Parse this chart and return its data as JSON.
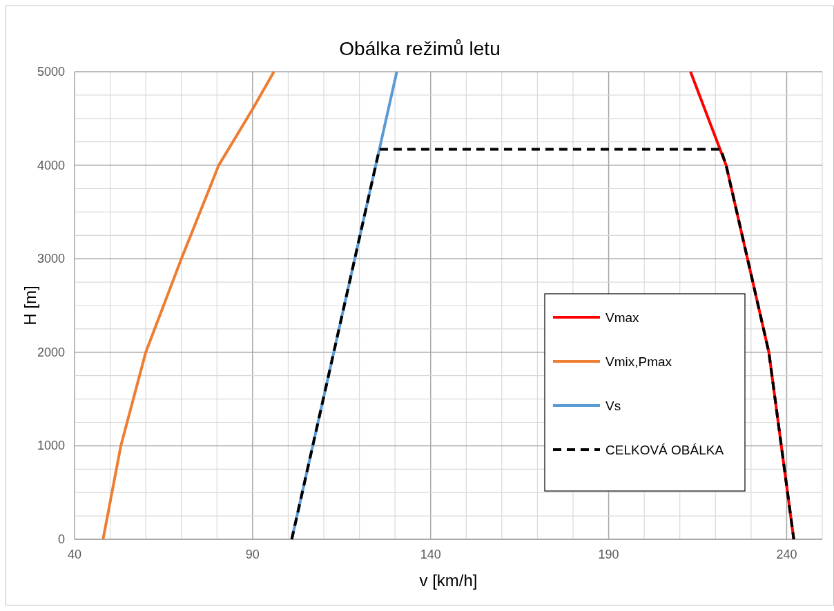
{
  "chart_data": {
    "type": "line",
    "title": "Obálka režimů letu",
    "xlabel": "v [km/h]",
    "ylabel": "H [m]",
    "xlim": [
      40,
      250
    ],
    "ylim": [
      0,
      5000
    ],
    "xticks": [
      40,
      {
        "value": 50,
        "label": null
      },
      {
        "value": 60,
        "label": null
      },
      {
        "value": 70,
        "label": null
      },
      {
        "value": 80,
        "label": null
      },
      90,
      {
        "value": 100,
        "label": null
      },
      {
        "value": 110,
        "label": null
      },
      {
        "value": 120,
        "label": null
      },
      {
        "value": 130,
        "label": null
      },
      140,
      {
        "value": 150,
        "label": null
      },
      {
        "value": 160,
        "label": null
      },
      {
        "value": 170,
        "label": null
      },
      {
        "value": 180,
        "label": null
      },
      190,
      {
        "value": 200,
        "label": null
      },
      {
        "value": 210,
        "label": null
      },
      {
        "value": 220,
        "label": null
      },
      {
        "value": 230,
        "label": null
      },
      240,
      {
        "value": 250,
        "label": null
      }
    ],
    "yticks": [
      0,
      {
        "value": 250,
        "label": null
      },
      {
        "value": 500,
        "label": null
      },
      {
        "value": 750,
        "label": null
      },
      1000,
      {
        "value": 1250,
        "label": null
      },
      {
        "value": 1500,
        "label": null
      },
      {
        "value": 1750,
        "label": null
      },
      2000,
      {
        "value": 2250,
        "label": null
      },
      {
        "value": 2500,
        "label": null
      },
      {
        "value": 2750,
        "label": null
      },
      3000,
      {
        "value": 3250,
        "label": null
      },
      {
        "value": 3500,
        "label": null
      },
      {
        "value": 3750,
        "label": null
      },
      4000,
      {
        "value": 4250,
        "label": null
      },
      {
        "value": 4500,
        "label": null
      },
      {
        "value": 4750,
        "label": null
      },
      5000
    ],
    "grid": true,
    "legend": "bottom right",
    "marker": "none",
    "series": [
      {
        "name": "Vmax",
        "color": "#ff0000",
        "line_style": "solid",
        "x": [
          242,
          238.5,
          235,
          229,
          223,
          213
        ],
        "values": [
          0,
          1000,
          2000,
          3000,
          4000,
          5000
        ]
      },
      {
        "name": "Vmix,Pmax",
        "color": "#ed7d31",
        "line_style": "solid",
        "x": [
          48,
          53,
          60,
          70,
          80.5,
          90,
          96
        ],
        "values": [
          0,
          1000,
          2000,
          3000,
          4000,
          4600,
          5000
        ]
      },
      {
        "name": "Vs",
        "color": "#5b9bd5",
        "line_style": "solid",
        "x": [
          101,
          130.5
        ],
        "values": [
          0,
          5000
        ]
      },
      {
        "name": "CELKOVÁ OBÁLKA",
        "color": "#000000",
        "line_style": "dashed",
        "x": [
          101,
          125.6,
          221.5,
          223,
          229,
          235,
          238.5,
          242
        ],
        "values": [
          0,
          4170,
          4170,
          4000,
          3000,
          2000,
          1000,
          0
        ]
      }
    ]
  }
}
